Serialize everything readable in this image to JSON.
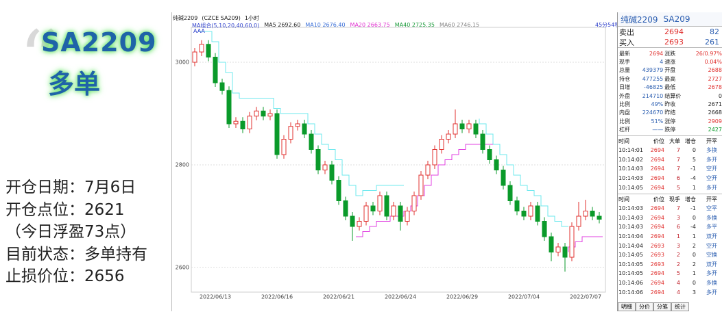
{
  "overlay": {
    "code": "SA2209",
    "direction": "多单",
    "notes": [
      "开仓日期：7月6日",
      "开仓点位：2621",
      "（今日浮盈73点）",
      "目前状态：多单持有",
      "止损价位：2656"
    ]
  },
  "chart_data": {
    "type": "candlestick",
    "title": "纯碱2209",
    "subtitle": "(CZCE SA209)",
    "period": "1小时",
    "indicator": "MA组合(5,10,20,40,60,0)",
    "ma_legend": [
      {
        "name": "MA5",
        "value": "2692.60",
        "color": "#222222"
      },
      {
        "name": "MA10",
        "value": "2676.40",
        "color": "#3a6fd8"
      },
      {
        "name": "MA20",
        "value": "2663.75",
        "color": "#e030d0"
      },
      {
        "name": "MA40",
        "value": "2725.35",
        "color": "#1a9a3a"
      },
      {
        "name": "MA60",
        "value": "2746.15",
        "color": "#888888"
      }
    ],
    "tag": "AAA",
    "timer": "45分54秒",
    "categories": [
      null,
      null,
      null,
      "2022/06/13",
      null,
      null,
      null,
      null,
      null,
      null,
      null,
      null,
      "2022/06/16",
      null,
      null,
      null,
      null,
      null,
      null,
      null,
      null,
      "2022/06/21",
      null,
      null,
      null,
      null,
      null,
      null,
      null,
      null,
      "2022/06/24",
      null,
      null,
      null,
      null,
      null,
      null,
      null,
      null,
      "2022/06/29",
      null,
      null,
      null,
      null,
      null,
      null,
      null,
      null,
      "2022/07/04",
      null,
      null,
      null,
      null,
      null,
      null,
      null,
      null,
      "2022/07/07",
      null,
      null
    ],
    "candles": [
      [
        3000,
        3028,
        2992,
        3020
      ],
      [
        3020,
        3043,
        3012,
        3035
      ],
      [
        3035,
        3043,
        3002,
        3010
      ],
      [
        3010,
        3018,
        2952,
        2960
      ],
      [
        2960,
        2968,
        2937,
        2945
      ],
      [
        2945,
        2953,
        2872,
        2880
      ],
      [
        2880,
        2893,
        2872,
        2885
      ],
      [
        2885,
        2893,
        2862,
        2870
      ],
      [
        2870,
        2903,
        2862,
        2895
      ],
      [
        2895,
        2913,
        2887,
        2905
      ],
      [
        2905,
        2913,
        2887,
        2895
      ],
      [
        2895,
        2908,
        2887,
        2900
      ],
      [
        2900,
        2908,
        2812,
        2820
      ],
      [
        2820,
        2858,
        2812,
        2850
      ],
      [
        2850,
        2883,
        2842,
        2875
      ],
      [
        2875,
        2888,
        2867,
        2880
      ],
      [
        2880,
        2888,
        2852,
        2860
      ],
      [
        2860,
        2868,
        2822,
        2830
      ],
      [
        2830,
        2838,
        2782,
        2790
      ],
      [
        2790,
        2808,
        2782,
        2800
      ],
      [
        2800,
        2808,
        2762,
        2770
      ],
      [
        2770,
        2778,
        2722,
        2730
      ],
      [
        2730,
        2738,
        2692,
        2700
      ],
      [
        2700,
        2708,
        2652,
        2680
      ],
      [
        2680,
        2698,
        2672,
        2690
      ],
      [
        2690,
        2728,
        2682,
        2720
      ],
      [
        2720,
        2728,
        2702,
        2710
      ],
      [
        2710,
        2748,
        2702,
        2740
      ],
      [
        2740,
        2748,
        2692,
        2700
      ],
      [
        2700,
        2728,
        2692,
        2720
      ],
      [
        2720,
        2728,
        2672,
        2690
      ],
      [
        2690,
        2718,
        2682,
        2710
      ],
      [
        2710,
        2748,
        2702,
        2740
      ],
      [
        2740,
        2788,
        2732,
        2780
      ],
      [
        2780,
        2808,
        2772,
        2800
      ],
      [
        2800,
        2838,
        2792,
        2830
      ],
      [
        2830,
        2858,
        2822,
        2850
      ],
      [
        2850,
        2868,
        2842,
        2860
      ],
      [
        2860,
        2908,
        2852,
        2880
      ],
      [
        2880,
        2888,
        2862,
        2870
      ],
      [
        2870,
        2888,
        2862,
        2880
      ],
      [
        2880,
        2888,
        2852,
        2860
      ],
      [
        2860,
        2868,
        2822,
        2830
      ],
      [
        2830,
        2838,
        2802,
        2810
      ],
      [
        2810,
        2818,
        2782,
        2790
      ],
      [
        2790,
        2798,
        2752,
        2760
      ],
      [
        2760,
        2768,
        2722,
        2730
      ],
      [
        2730,
        2738,
        2702,
        2710
      ],
      [
        2710,
        2718,
        2692,
        2700
      ],
      [
        2700,
        2728,
        2692,
        2720
      ],
      [
        2720,
        2728,
        2682,
        2690
      ],
      [
        2690,
        2698,
        2652,
        2660
      ],
      [
        2660,
        2668,
        2612,
        2630
      ],
      [
        2630,
        2648,
        2622,
        2640
      ],
      [
        2640,
        2648,
        2592,
        2620
      ],
      [
        2620,
        2688,
        2612,
        2680
      ],
      [
        2680,
        2728,
        2672,
        2700
      ],
      [
        2700,
        2732,
        2692,
        2710
      ],
      [
        2710,
        2718,
        2692,
        2700
      ],
      [
        2700,
        2708,
        2686,
        2694
      ]
    ],
    "up_color": "#e0312f",
    "down_color": "#0a9a2a",
    "lines": [
      {
        "color": "#6ee8ee",
        "values": [
          3060,
          3060,
          3060,
          3040,
          3000,
          2980,
          2940,
          2930,
          2930,
          2930,
          2930,
          2930,
          2910,
          2900,
          2900,
          2900,
          2900,
          2880,
          2860,
          2840,
          2830,
          2810,
          2780,
          2760,
          2740,
          2750,
          2750,
          2760,
          2760,
          2760,
          2760,
          null,
          null,
          null,
          null,
          null,
          null,
          null,
          null,
          null,
          null,
          2890,
          2880,
          2860,
          2840,
          2820,
          2800,
          2780,
          2760,
          2750,
          2740,
          2720,
          2700,
          2690,
          2680,
          null,
          null,
          null,
          null,
          null
        ]
      },
      {
        "color": "#e040e0",
        "values": [
          null,
          null,
          null,
          null,
          null,
          null,
          null,
          null,
          null,
          null,
          null,
          null,
          null,
          null,
          null,
          null,
          null,
          null,
          null,
          null,
          null,
          null,
          null,
          2660,
          2660,
          2670,
          2680,
          2690,
          2690,
          2700,
          2700,
          2710,
          2720,
          2740,
          2760,
          2780,
          2800,
          2810,
          2820,
          2830,
          2840,
          2840,
          2840,
          2840,
          null,
          null,
          null,
          null,
          null,
          null,
          null,
          null,
          null,
          null,
          2630,
          2640,
          2650,
          2660,
          2660,
          2660
        ]
      }
    ],
    "ylim": [
      2552,
      3068
    ],
    "yticks": [
      2600,
      2800,
      3000
    ],
    "grid": true
  },
  "quote": {
    "name": "纯碱2209",
    "code": "SA209",
    "book": [
      [
        "卖出",
        "2694",
        "82"
      ],
      [
        "买入",
        "2693",
        "261"
      ]
    ],
    "stats": [
      [
        "最新",
        "2694",
        "涨跌",
        "26/0.97%"
      ],
      [
        "现手",
        "4",
        "速涨",
        "0.04%"
      ],
      [
        "总量",
        "439379",
        "开盘",
        "2688"
      ],
      [
        "持仓",
        "477255",
        "最高",
        "2727"
      ],
      [
        "日增",
        "-46825",
        "最低",
        "2678"
      ],
      [
        "外盘",
        "214710",
        "结算价",
        "0"
      ],
      [
        "比例",
        "49%",
        "昨收",
        "2671"
      ],
      [
        "内盘",
        "224670",
        "昨结",
        "2668"
      ],
      [
        "比例",
        "51%",
        "涨停",
        "2909"
      ],
      [
        "杠杆",
        "——",
        "跌停",
        "2427"
      ]
    ]
  },
  "big_trades": {
    "header": [
      "时间",
      "价位",
      "大单",
      "增仓",
      "开平"
    ],
    "rows": [
      [
        "10:14:01",
        "2694",
        "7",
        "0",
        "多换"
      ],
      [
        "10:14:02",
        "2694",
        "7",
        "5",
        "多开"
      ],
      [
        "10:14:03",
        "2694",
        "7",
        "-1",
        "空开"
      ],
      [
        "10:14:03",
        "2694",
        "6",
        "-4",
        "空开"
      ],
      [
        "10:14:05",
        "2694",
        "5",
        "1",
        "多开"
      ]
    ]
  },
  "trades": {
    "header": [
      "时间",
      "价位",
      "现手",
      "增仓",
      "开平"
    ],
    "rows": [
      [
        "10:14:03",
        "2694",
        "7",
        "-1",
        "空平"
      ],
      [
        "10:14:03",
        "2694",
        "3",
        "0",
        "多换"
      ],
      [
        "10:14:03",
        "2694",
        "6",
        "-4",
        "多平"
      ],
      [
        "10:14:04",
        "2694",
        "1",
        "1",
        "双开"
      ],
      [
        "10:14:04",
        "2693",
        "3",
        "2",
        "空开"
      ],
      [
        "10:14:05",
        "2693",
        "2",
        "0",
        "空换"
      ],
      [
        "10:14:05",
        "2693",
        "2",
        "2",
        "双开"
      ],
      [
        "10:14:05",
        "2694",
        "5",
        "1",
        "多开"
      ],
      [
        "10:14:06",
        "2694",
        "4",
        "0",
        "多换"
      ],
      [
        "10:14:06",
        "2694",
        "4",
        "3",
        "多开"
      ]
    ]
  },
  "tabs": [
    "明细",
    "分价",
    "分笔",
    "统计"
  ]
}
